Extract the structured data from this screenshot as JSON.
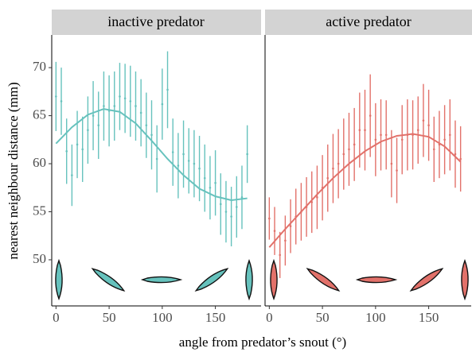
{
  "chart_data": [
    {
      "type": "errorbar",
      "title": "inactive predator",
      "color": "#66c2bd",
      "ylabel": "nearest neighbour distance (mm)",
      "xlabel": "angle from predator’s snout (°)",
      "x": [
        0,
        5,
        10,
        15,
        20,
        25,
        30,
        35,
        40,
        45,
        50,
        55,
        60,
        65,
        70,
        75,
        80,
        85,
        90,
        95,
        100,
        105,
        110,
        115,
        120,
        125,
        130,
        135,
        140,
        145,
        150,
        155,
        160,
        165,
        170,
        175,
        180
      ],
      "values": [
        67,
        66.5,
        61.3,
        58.8,
        62,
        61.5,
        63.5,
        65,
        64,
        66,
        65.5,
        66,
        67,
        66.8,
        66.5,
        66,
        65.3,
        64,
        63,
        60.5,
        66.2,
        67.7,
        61.2,
        59.8,
        61,
        60.3,
        60,
        59.5,
        58.5,
        57.5,
        58,
        55.8,
        55,
        54.5,
        55.5,
        56.5,
        61
      ],
      "errors": [
        3.6,
        3.5,
        3.4,
        3.2,
        3.5,
        3.4,
        3.5,
        3.6,
        3.5,
        3.6,
        3.7,
        3.6,
        3.5,
        3.6,
        3.7,
        3.6,
        3.5,
        3.4,
        3.6,
        3.5,
        3.7,
        4,
        3.5,
        3.4,
        3.5,
        3.4,
        3.5,
        3.4,
        3.5,
        3.3,
        3.4,
        3.2,
        3.2,
        3.1,
        3.2,
        3.3,
        3
      ],
      "fit_x": [
        0,
        15,
        30,
        45,
        60,
        75,
        90,
        105,
        120,
        135,
        150,
        165,
        180
      ],
      "fit_values": [
        62.1,
        63.8,
        65.1,
        65.7,
        65.4,
        64.2,
        62.4,
        60.5,
        58.8,
        57.4,
        56.6,
        56.2,
        56.4
      ],
      "xlim": [
        -4,
        193
      ],
      "ylim": [
        45.2,
        73.4
      ],
      "xticks": [
        0,
        50,
        100,
        150
      ],
      "yticks": [
        50,
        55,
        60,
        65,
        70
      ]
    },
    {
      "type": "errorbar",
      "title": "active predator",
      "color": "#e2716a",
      "x": [
        0,
        5,
        10,
        15,
        20,
        25,
        30,
        35,
        40,
        45,
        50,
        55,
        60,
        65,
        70,
        75,
        80,
        85,
        90,
        95,
        100,
        105,
        110,
        115,
        120,
        125,
        130,
        135,
        140,
        145,
        150,
        155,
        160,
        165,
        170,
        175,
        180
      ],
      "values": [
        54.3,
        53,
        50.5,
        52,
        53.5,
        54.5,
        55,
        55.5,
        56,
        56.5,
        57.5,
        58.5,
        59.5,
        60,
        61,
        61.5,
        62,
        63.5,
        63.5,
        65,
        62.5,
        63,
        63,
        60,
        59.3,
        62.5,
        63,
        63,
        63.5,
        64.5,
        64,
        61.5,
        62,
        62.5,
        63,
        61,
        60.5
      ],
      "errors": [
        2.2,
        2.5,
        2.4,
        2.6,
        2.8,
        2.9,
        3,
        3.1,
        3.2,
        3.3,
        3.4,
        3.5,
        3.6,
        3.6,
        3.7,
        3.8,
        3.8,
        3.9,
        4.2,
        4.3,
        3.8,
        3.7,
        3.6,
        3.5,
        3.4,
        3.6,
        3.7,
        3.6,
        3.5,
        3.8,
        3.7,
        3.4,
        3.5,
        3.6,
        3.7,
        3.5,
        3.4
      ],
      "fit_x": [
        0,
        15,
        30,
        45,
        60,
        75,
        90,
        105,
        120,
        135,
        150,
        165,
        180
      ],
      "fit_values": [
        51.3,
        53.2,
        55,
        56.8,
        58.5,
        60,
        61.3,
        62.3,
        62.9,
        63.1,
        62.8,
        61.8,
        60.2
      ],
      "xlim": [
        -4,
        190
      ],
      "ylim": [
        45.2,
        73.4
      ],
      "xticks": [
        0,
        50,
        100,
        150
      ]
    }
  ]
}
